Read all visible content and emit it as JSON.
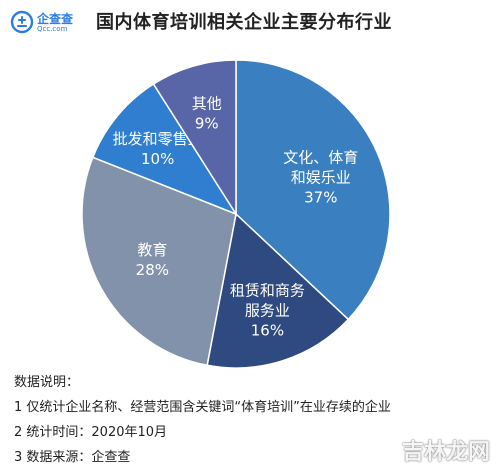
{
  "brand": {
    "logo_text": "企查查",
    "logo_domain": "Qcc.com",
    "color": "#2a7de1"
  },
  "title": "国内体育培训相关企业主要分布行业",
  "chart_data": {
    "type": "pie",
    "unit": "%",
    "slices": [
      {
        "name": "文化、体育和娱乐业",
        "label_lines": [
          "文化、体育",
          "和娱乐业",
          "37%"
        ],
        "value": 37,
        "color": "#3a7fc0"
      },
      {
        "name": "租赁和商务服务业",
        "label_lines": [
          "租赁和商务",
          "服务业",
          "16%"
        ],
        "value": 16,
        "color": "#2f4a80"
      },
      {
        "name": "教育",
        "label_lines": [
          "教育",
          "28%"
        ],
        "value": 28,
        "color": "#8392ab"
      },
      {
        "name": "批发和零售业",
        "label_lines": [
          "批发和零售业",
          "10%"
        ],
        "value": 10,
        "color": "#2f7ed0"
      },
      {
        "name": "其他",
        "label_lines": [
          "其他",
          "9%"
        ],
        "value": 9,
        "color": "#5866a8"
      }
    ]
  },
  "notes": {
    "heading": "数据说明：",
    "lines": [
      "1 仅统计企业名称、经营范围含关键词“体育培训”在业存续的企业",
      "2 统计时间：2020年10月",
      "3 数据来源：企查查"
    ]
  },
  "watermark": "吉林龙网"
}
